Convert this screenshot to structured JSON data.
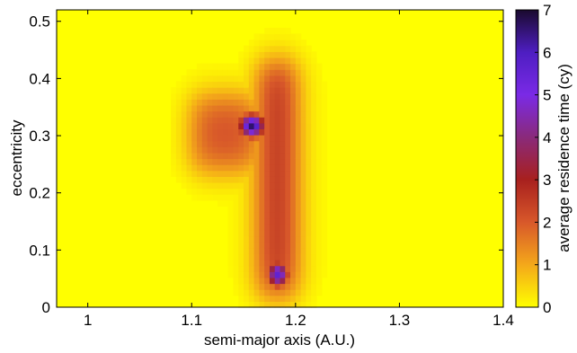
{
  "chart_data": {
    "type": "heatmap",
    "title": "",
    "xlabel": "semi-major axis (A.U.)",
    "ylabel": "eccentricity",
    "colorbar_label": "average residence time (cy)",
    "xlim": [
      0.97,
      1.4
    ],
    "ylim": [
      0,
      0.52
    ],
    "clim": [
      0,
      7
    ],
    "xticks": [
      {
        "v": 1,
        "label": "1"
      },
      {
        "v": 1.1,
        "label": "1.1"
      },
      {
        "v": 1.2,
        "label": "1.2"
      },
      {
        "v": 1.3,
        "label": "1.3"
      },
      {
        "v": 1.4,
        "label": "1.4"
      }
    ],
    "yticks": [
      {
        "v": 0,
        "label": "0"
      },
      {
        "v": 0.1,
        "label": "0.1"
      },
      {
        "v": 0.2,
        "label": "0.2"
      },
      {
        "v": 0.3,
        "label": "0.3"
      },
      {
        "v": 0.4,
        "label": "0.4"
      },
      {
        "v": 0.5,
        "label": "0.5"
      }
    ],
    "cticks": [
      {
        "v": 0,
        "label": "0"
      },
      {
        "v": 1,
        "label": "1"
      },
      {
        "v": 2,
        "label": "2"
      },
      {
        "v": 3,
        "label": "3"
      },
      {
        "v": 4,
        "label": "4"
      },
      {
        "v": 5,
        "label": "5"
      },
      {
        "v": 6,
        "label": "6"
      },
      {
        "v": 7,
        "label": "7"
      }
    ],
    "colormap": [
      "#ffff00",
      "#f4a81a",
      "#d8582a",
      "#a8201e",
      "#8a2a7a",
      "#7a2ae6",
      "#4e1ec2",
      "#1a0a2e"
    ],
    "grid": false,
    "features": [
      {
        "name": "high-residence band",
        "a_range": [
          1.165,
          1.2
        ],
        "e_range": [
          0.02,
          0.43
        ],
        "peak": 2.9
      },
      {
        "name": "left lobe",
        "a_range": [
          1.1,
          1.165
        ],
        "e_range": [
          0.24,
          0.37
        ],
        "peak": 2.2
      },
      {
        "name": "upper peak",
        "a": 1.158,
        "e": 0.318,
        "peak": 6.6
      },
      {
        "name": "lower peak",
        "a": 1.183,
        "e": 0.058,
        "peak": 5.6
      }
    ]
  }
}
